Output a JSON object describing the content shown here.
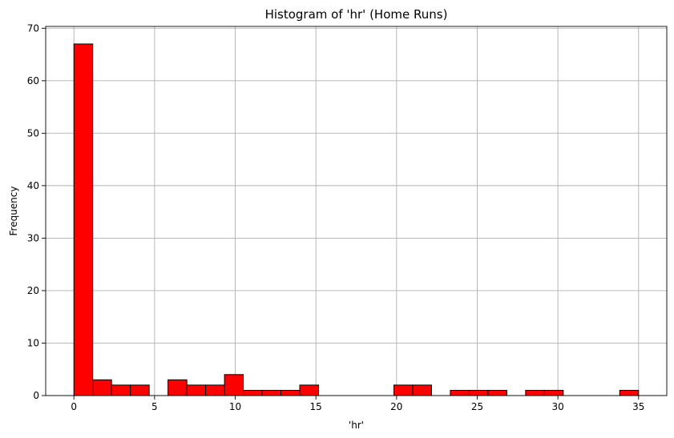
{
  "chart_data": {
    "type": "bar",
    "title": "Histogram of 'hr' (Home Runs)",
    "xlabel": "'hr'",
    "ylabel": "Frequency",
    "xlim": [
      -1.75,
      36.75
    ],
    "ylim": [
      0,
      70.35
    ],
    "xticks": [
      0,
      5,
      10,
      15,
      20,
      25,
      30,
      35
    ],
    "yticks": [
      0,
      10,
      20,
      30,
      40,
      50,
      60,
      70
    ],
    "grid": true,
    "bar_color": "#ff0000",
    "edge_color": "#000000",
    "bin_edges": [
      0,
      1.1667,
      2.3333,
      3.5,
      4.6667,
      5.8333,
      7,
      8.1667,
      9.3333,
      10.5,
      11.6667,
      12.8333,
      14,
      15.1667,
      16.3333,
      17.5,
      18.6667,
      19.8333,
      21,
      22.1667,
      23.3333,
      24.5,
      25.6667,
      26.8333,
      28,
      29.1667,
      30.3333,
      31.5,
      32.6667,
      33.8333,
      35
    ],
    "values": [
      67,
      3,
      2,
      2,
      0,
      3,
      2,
      2,
      4,
      1,
      1,
      1,
      2,
      0,
      0,
      0,
      0,
      2,
      2,
      0,
      1,
      1,
      1,
      0,
      1,
      1,
      0,
      0,
      0,
      1
    ]
  }
}
